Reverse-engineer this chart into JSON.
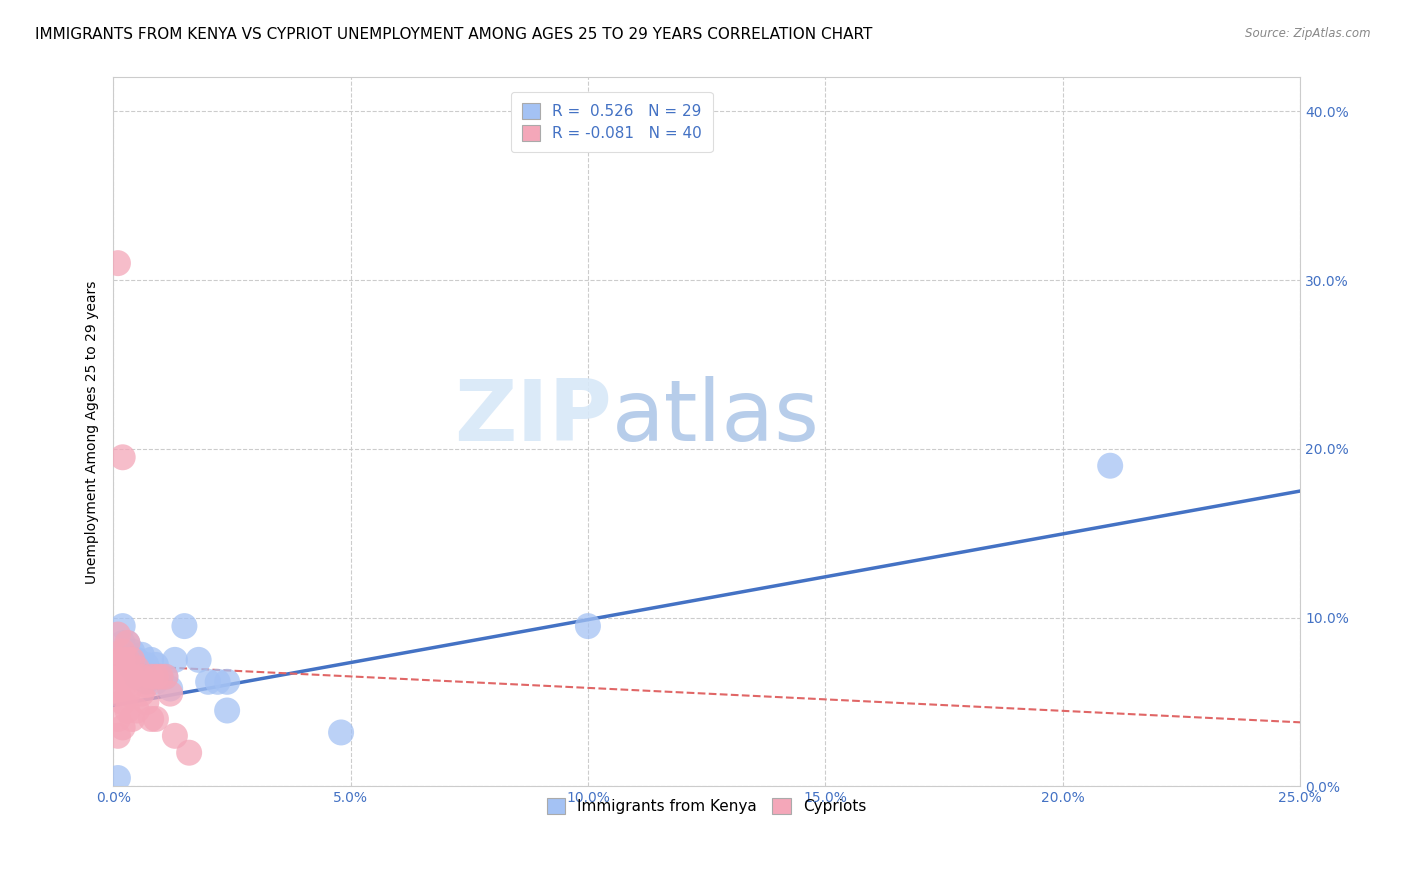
{
  "title": "IMMIGRANTS FROM KENYA VS CYPRIOT UNEMPLOYMENT AMONG AGES 25 TO 29 YEARS CORRELATION CHART",
  "source": "Source: ZipAtlas.com",
  "ylabel": "Unemployment Among Ages 25 to 29 years",
  "xlim": [
    0.0,
    0.25
  ],
  "ylim": [
    0.0,
    0.42
  ],
  "x_ticks": [
    0.0,
    0.05,
    0.1,
    0.15,
    0.2,
    0.25
  ],
  "x_tick_labels": [
    "0.0%",
    "5.0%",
    "10.0%",
    "15.0%",
    "20.0%",
    "25.0%"
  ],
  "y_ticks": [
    0.0,
    0.1,
    0.2,
    0.3,
    0.4
  ],
  "y_tick_labels": [
    "0.0%",
    "10.0%",
    "20.0%",
    "30.0%",
    "40.0%"
  ],
  "blue_color": "#a4c2f4",
  "pink_color": "#f4a7b9",
  "blue_line_color": "#4472c4",
  "pink_line_color": "#e06666",
  "legend_R_blue": "R =  0.526   N = 29",
  "legend_R_pink": "R = -0.081   N = 40",
  "blue_points_x": [
    0.001,
    0.002,
    0.002,
    0.003,
    0.003,
    0.004,
    0.004,
    0.005,
    0.005,
    0.006,
    0.006,
    0.007,
    0.007,
    0.008,
    0.009,
    0.009,
    0.01,
    0.011,
    0.012,
    0.013,
    0.015,
    0.018,
    0.02,
    0.022,
    0.024,
    0.024,
    0.048,
    0.1,
    0.21
  ],
  "blue_points_y": [
    0.005,
    0.085,
    0.095,
    0.075,
    0.085,
    0.07,
    0.08,
    0.065,
    0.075,
    0.068,
    0.078,
    0.062,
    0.072,
    0.075,
    0.062,
    0.072,
    0.065,
    0.065,
    0.058,
    0.075,
    0.095,
    0.075,
    0.062,
    0.062,
    0.045,
    0.062,
    0.032,
    0.095,
    0.19
  ],
  "pink_points_x": [
    0.001,
    0.001,
    0.001,
    0.001,
    0.001,
    0.001,
    0.001,
    0.001,
    0.001,
    0.001,
    0.002,
    0.002,
    0.002,
    0.002,
    0.002,
    0.002,
    0.002,
    0.003,
    0.003,
    0.003,
    0.003,
    0.003,
    0.004,
    0.004,
    0.004,
    0.005,
    0.005,
    0.006,
    0.006,
    0.007,
    0.007,
    0.008,
    0.008,
    0.009,
    0.009,
    0.01,
    0.011,
    0.012,
    0.013,
    0.016
  ],
  "pink_points_y": [
    0.31,
    0.065,
    0.065,
    0.075,
    0.075,
    0.07,
    0.055,
    0.04,
    0.03,
    0.09,
    0.195,
    0.065,
    0.075,
    0.08,
    0.055,
    0.05,
    0.035,
    0.075,
    0.065,
    0.055,
    0.045,
    0.085,
    0.065,
    0.075,
    0.04,
    0.07,
    0.045,
    0.065,
    0.055,
    0.06,
    0.05,
    0.065,
    0.04,
    0.065,
    0.04,
    0.065,
    0.065,
    0.055,
    0.03,
    0.02
  ],
  "blue_line_x": [
    0.0,
    0.25
  ],
  "blue_line_y": [
    0.048,
    0.175
  ],
  "pink_line_x": [
    0.0,
    0.25
  ],
  "pink_line_y": [
    0.072,
    0.038
  ],
  "watermark_zip": "ZIP",
  "watermark_atlas": "atlas",
  "title_fontsize": 11,
  "axis_label_fontsize": 10,
  "tick_fontsize": 10,
  "legend_fontsize": 11
}
